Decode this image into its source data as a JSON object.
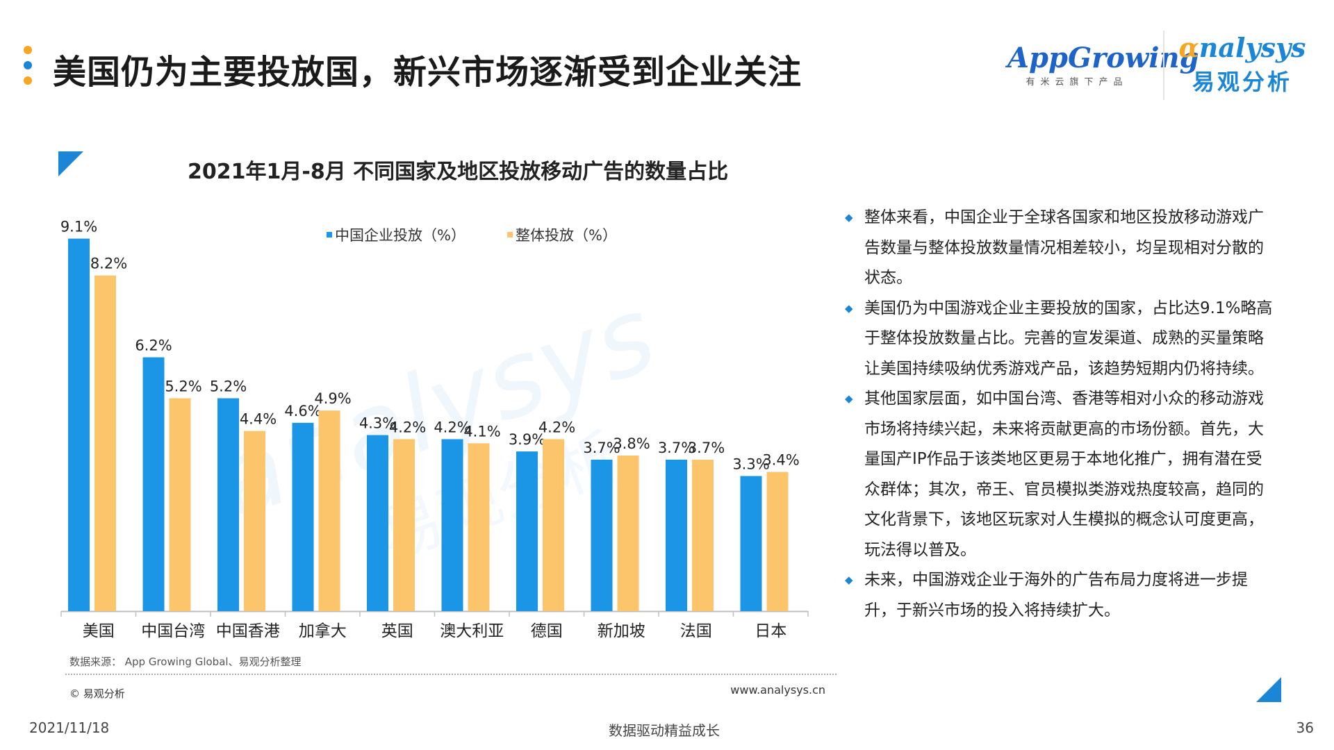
{
  "header": {
    "title": "美国仍为主要投放国，新兴市场逐渐受到企业关注",
    "dot_colors": [
      "#f5a623",
      "#1b86d6",
      "#f5a623"
    ],
    "logo_appgrowing": "AppGrowing",
    "logo_appgrowing_sub": "有米云旗下产品",
    "logo_analysys": "nalysys",
    "logo_analysys_sub": "易观分析"
  },
  "chart_data": {
    "type": "bar",
    "title": "2021年1月-8月 不同国家及地区投放移动广告的数量占比",
    "categories": [
      "美国",
      "中国台湾",
      "中国香港",
      "加拿大",
      "英国",
      "澳大利亚",
      "德国",
      "新加坡",
      "法国",
      "日本"
    ],
    "series": [
      {
        "name": "中国企业投放（%）",
        "color": "#1b96e6",
        "values": [
          9.1,
          6.2,
          5.2,
          4.6,
          4.3,
          4.2,
          3.9,
          3.7,
          3.7,
          3.3
        ],
        "labels": [
          "9.1%",
          "6.2%",
          "5.2%",
          "4.6%",
          "4.3%",
          "4.2%",
          "3.9%",
          "3.7%",
          "3.7%",
          "3.3%"
        ]
      },
      {
        "name": "整体投放（%）",
        "color": "#fdc56b",
        "values": [
          8.2,
          5.2,
          4.4,
          4.9,
          4.2,
          4.1,
          4.2,
          3.8,
          3.7,
          3.4
        ],
        "labels": [
          "8.2%",
          "5.2%",
          "4.4%",
          "4.9%",
          "4.2%",
          "4.1%",
          "4.2%",
          "3.8%",
          "3.7%",
          "3.4%"
        ]
      }
    ],
    "ylim": [
      0,
      9.5
    ],
    "grid": false,
    "legend_position": "top"
  },
  "watermark": {
    "main": "analysys",
    "sub": "易观分析"
  },
  "analysis": [
    "整体来看，中国企业于全球各国家和地区投放移动游戏广告数量与整体投放数量情况相差较小，均呈现相对分散的状态。",
    "美国仍为中国游戏企业主要投放的国家，占比达9.1%略高于整体投放数量占比。完善的宣发渠道、成熟的买量策略让美国持续吸纳优秀游戏产品，该趋势短期内仍将持续。",
    "其他国家层面，如中国台湾、香港等相对小众的移动游戏市场将持续兴起，未来将贡献更高的市场份额。首先，大量国产IP作品于该类地区更易于本地化推广，拥有潜在受众群体；其次，帝王、官员模拟类游戏热度较高，趋同的文化背景下，该地区玩家对人生模拟的概念认可度更高，玩法得以普及。",
    "未来，中国游戏企业于海外的广告布局力度将进一步提升，于新兴市场的投入将持续扩大。"
  ],
  "bullet_icon": "diamond-bullet-icon",
  "source": "数据来源： App Growing Global、易观分析整理",
  "copyright": "© 易观分析",
  "website": "www.analysys.cn",
  "footer": {
    "date": "2021/11/18",
    "slogan": "数据驱动精益成长",
    "page": "36"
  }
}
